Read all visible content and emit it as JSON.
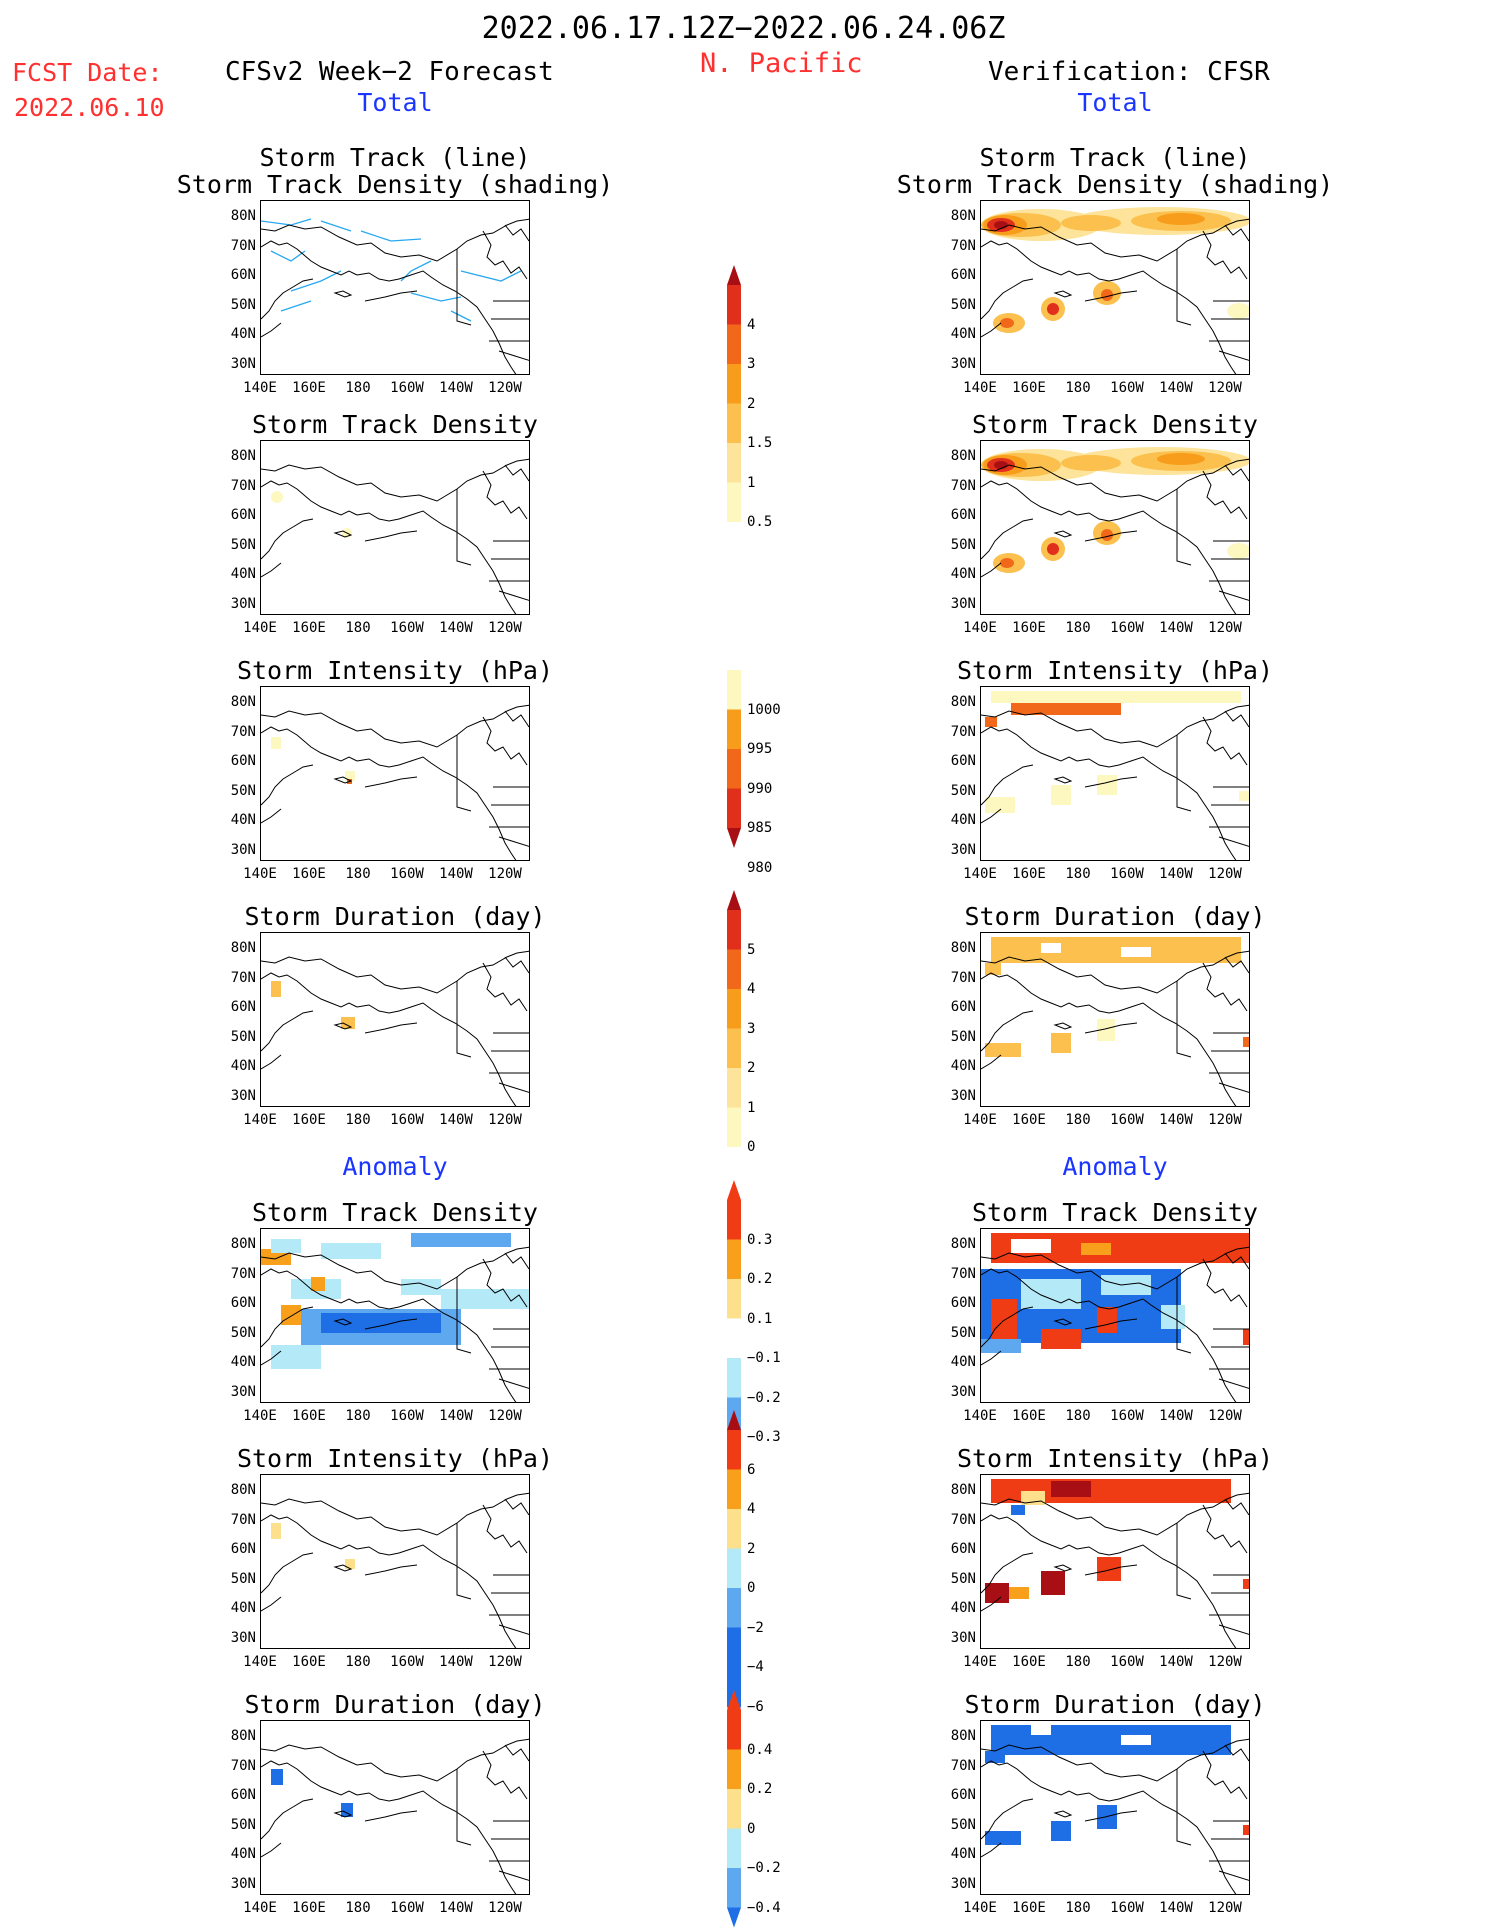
{
  "header": {
    "title": "2022.06.17.12Z−2022.06.24.06Z",
    "fcst_label": "FCST Date:",
    "fcst_date": "2022.06.10",
    "region": "N. Pacific",
    "left_title": "CFSv2 Week−2 Forecast",
    "right_title": "Verification: CFSR"
  },
  "sections": {
    "total": "Total",
    "anomaly": "Anomaly"
  },
  "panel_titles": {
    "track_line": "Storm Track (line)",
    "track_shading": "Storm Track Density (shading)",
    "density": "Storm Track Density",
    "intensity": "Storm Intensity (hPa)",
    "duration": "Storm Duration (day)"
  },
  "axes": {
    "lat": [
      "80N",
      "70N",
      "60N",
      "50N",
      "40N",
      "30N"
    ],
    "lon": [
      "140E",
      "160E",
      "180",
      "160W",
      "140W",
      "120W"
    ]
  },
  "colorbars": {
    "density": [
      "4",
      "3",
      "2",
      "1.5",
      "1",
      "0.5"
    ],
    "intensity": [
      "1000",
      "995",
      "990",
      "985",
      "980"
    ],
    "duration": [
      "5",
      "4",
      "3",
      "2",
      "1",
      "0"
    ],
    "density_anom": [
      "0.3",
      "0.2",
      "0.1",
      "−0.1",
      "−0.2",
      "−0.3"
    ],
    "intensity_anom": [
      "6",
      "4",
      "2",
      "0",
      "−2",
      "−4",
      "−6"
    ],
    "duration_anom": [
      "0.4",
      "0.2",
      "0",
      "−0.2",
      "−0.4"
    ]
  },
  "colors": {
    "red_text": "#ff3030",
    "blue_text": "#1a35ff",
    "warm_scale": [
      "#fdf8c0",
      "#fde49a",
      "#fbc04e",
      "#f89c1c",
      "#f2681a",
      "#e0301c",
      "#a80f14"
    ],
    "anom_scale": [
      "#1e6ee6",
      "#5ea8f0",
      "#b4eaf8",
      "#ffffff",
      "#fde08c",
      "#f8a01c",
      "#f03c14"
    ]
  }
}
